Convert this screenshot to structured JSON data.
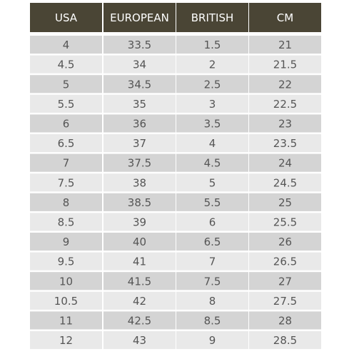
{
  "table": {
    "columns": [
      "USA",
      "EUROPEAN",
      "BRITISH",
      "CM"
    ],
    "rows": [
      [
        "4",
        "33.5",
        "1.5",
        "21"
      ],
      [
        "4.5",
        "34",
        "2",
        "21.5"
      ],
      [
        "5",
        "34.5",
        "2.5",
        "22"
      ],
      [
        "5.5",
        "35",
        "3",
        "22.5"
      ],
      [
        "6",
        "36",
        "3.5",
        "23"
      ],
      [
        "6.5",
        "37",
        "4",
        "23.5"
      ],
      [
        "7",
        "37.5",
        "4.5",
        "24"
      ],
      [
        "7.5",
        "38",
        "5",
        "24.5"
      ],
      [
        "8",
        "38.5",
        "5.5",
        "25"
      ],
      [
        "8.5",
        "39",
        "6",
        "25.5"
      ],
      [
        "9",
        "40",
        "6.5",
        "26"
      ],
      [
        "9.5",
        "41",
        "7",
        "26.5"
      ],
      [
        "10",
        "41.5",
        "7.5",
        "27"
      ],
      [
        "10.5",
        "42",
        "8",
        "27.5"
      ],
      [
        "11",
        "42.5",
        "8.5",
        "28"
      ],
      [
        "12",
        "43",
        "9",
        "28.5"
      ]
    ]
  }
}
